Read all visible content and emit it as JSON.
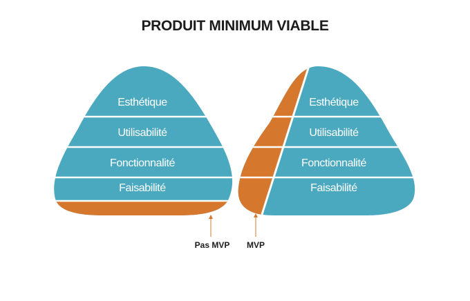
{
  "title": "PRODUIT MINIMUM VIABLE",
  "colors": {
    "layer": "#4aa9be",
    "accent": "#d5782e",
    "separator": "#ffffff",
    "text": "#1c1c1c"
  },
  "pyramids": [
    {
      "id": "pas-mvp",
      "layers": [
        "Esthétique",
        "Utilisabilité",
        "Fonctionnalité",
        "Faisabilité"
      ],
      "callout": "Pas MVP"
    },
    {
      "id": "mvp",
      "layers": [
        "Esthétique",
        "Utilisabilité",
        "Fonctionnalité",
        "Faisabilité"
      ],
      "callout": "MVP"
    }
  ]
}
